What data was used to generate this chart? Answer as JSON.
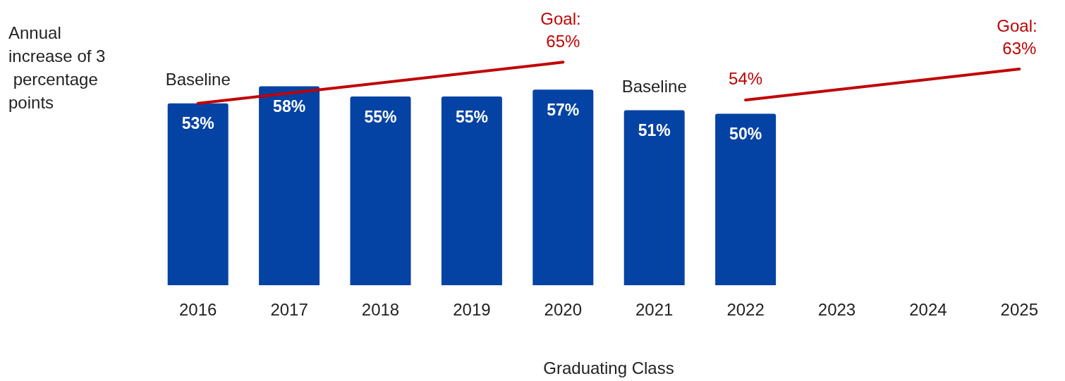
{
  "chart_data": {
    "type": "bar",
    "xlabel": "Graduating Class",
    "categories": [
      "2016",
      "2017",
      "2018",
      "2019",
      "2020",
      "2021",
      "2022",
      "2023",
      "2024",
      "2025"
    ],
    "series": [
      {
        "color": "#0443a4",
        "values": [
          53,
          58,
          55,
          55,
          57,
          51,
          50,
          null,
          null,
          null
        ],
        "value_labels": [
          "53%",
          "58%",
          "55%",
          "55%",
          "57%",
          "51%",
          "50%",
          null,
          null,
          null
        ]
      },
      {
        "type": "line",
        "color": "#c00000",
        "values": [
          53,
          null,
          null,
          null,
          65,
          null,
          null,
          null,
          null,
          null
        ],
        "value_labels": [
          null,
          null,
          null,
          null,
          "Goal: 65%",
          null,
          null,
          null,
          null,
          null
        ]
      },
      {
        "type": "line",
        "color": "#c00000",
        "values": [
          null,
          null,
          null,
          null,
          null,
          null,
          54,
          null,
          null,
          63
        ],
        "value_labels": [
          null,
          null,
          null,
          null,
          null,
          null,
          "54%",
          null,
          null,
          "Goal: 63%"
        ]
      }
    ],
    "grid": false,
    "marker": "none",
    "line_style": "solid",
    "annotations": [
      "Annual increase of 3 percentage points",
      {
        "text": "Baseline",
        "x": "2016",
        "y": 53
      },
      {
        "text": "Baseline",
        "x": "2021",
        "y": 51
      }
    ]
  }
}
